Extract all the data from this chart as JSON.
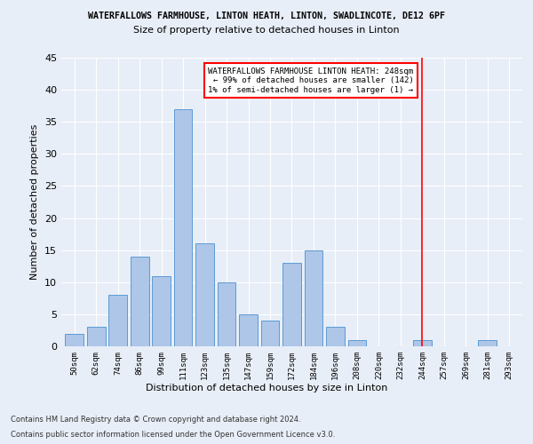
{
  "title1": "WATERFALLOWS FARMHOUSE, LINTON HEATH, LINTON, SWADLINCOTE, DE12 6PF",
  "title2": "Size of property relative to detached houses in Linton",
  "xlabel": "Distribution of detached houses by size in Linton",
  "ylabel": "Number of detached properties",
  "categories": [
    "50sqm",
    "62sqm",
    "74sqm",
    "86sqm",
    "99sqm",
    "111sqm",
    "123sqm",
    "135sqm",
    "147sqm",
    "159sqm",
    "172sqm",
    "184sqm",
    "196sqm",
    "208sqm",
    "220sqm",
    "232sqm",
    "244sqm",
    "257sqm",
    "269sqm",
    "281sqm",
    "293sqm"
  ],
  "values": [
    2,
    3,
    8,
    14,
    11,
    37,
    16,
    10,
    5,
    4,
    13,
    15,
    3,
    1,
    0,
    0,
    1,
    0,
    0,
    1,
    0
  ],
  "bar_color": "#aec6e8",
  "bar_edge_color": "#5b9bd5",
  "highlight_line_index": 16,
  "annotation_line1": "WATERFALLOWS FARMHOUSE LINTON HEATH: 248sqm",
  "annotation_line2": "← 99% of detached houses are smaller (142)",
  "annotation_line3": "1% of semi-detached houses are larger (1) →",
  "ylim": [
    0,
    45
  ],
  "yticks": [
    0,
    5,
    10,
    15,
    20,
    25,
    30,
    35,
    40,
    45
  ],
  "footer1": "Contains HM Land Registry data © Crown copyright and database right 2024.",
  "footer2": "Contains public sector information licensed under the Open Government Licence v3.0.",
  "bg_color": "#e8eef7",
  "plot_bg_color": "#e8eef7"
}
